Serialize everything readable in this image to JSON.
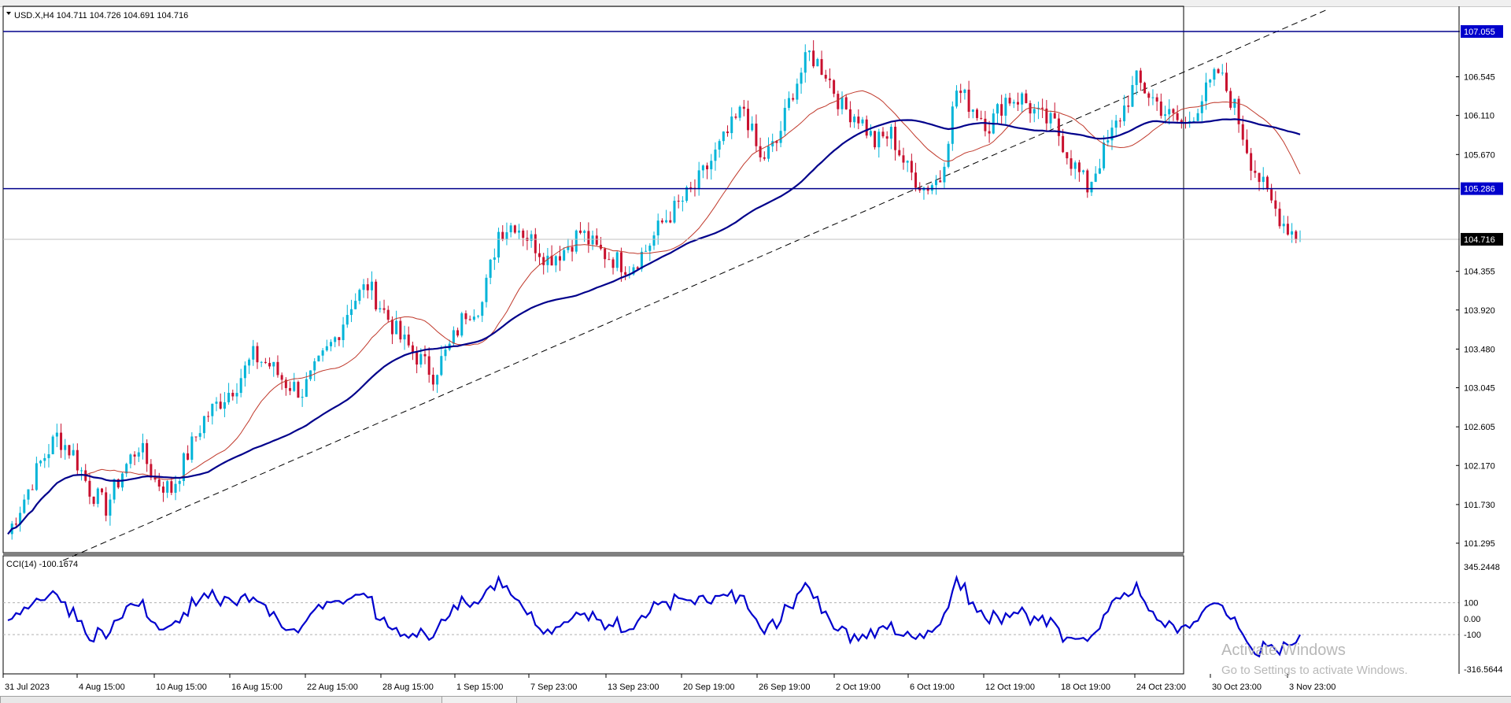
{
  "header": {
    "symbol_line": "USD.X,H4  104.711 104.726 104.691 104.716"
  },
  "price_scale": {
    "labels": [
      "106.545",
      "106.110",
      "105.670",
      "104.355",
      "103.920",
      "103.480",
      "103.045",
      "102.605",
      "102.170",
      "101.730",
      "101.295"
    ],
    "hline_top": "107.055",
    "hline_mid": "105.286",
    "current": "104.716"
  },
  "indicator": {
    "title": "CCI(14) -100.1674",
    "scale": [
      "345.2448",
      "100",
      "0.00",
      "-100",
      "-316.5644"
    ]
  },
  "time_axis": [
    "31 Jul 2023",
    "4 Aug 15:00",
    "10 Aug 15:00",
    "16 Aug 15:00",
    "22 Aug 15:00",
    "28 Aug 15:00",
    "1 Sep 15:00",
    "7 Sep 23:00",
    "13 Sep 23:00",
    "20 Sep 19:00",
    "26 Sep 19:00",
    "2 Oct 19:00",
    "6 Oct 19:00",
    "12 Oct 19:00",
    "18 Oct 19:00",
    "24 Oct 23:00",
    "30 Oct 23:00",
    "3 Nov 23:00"
  ],
  "watermark": {
    "line1": "Activate Windows",
    "line2": "Go to Settings to activate Windows."
  },
  "colors": {
    "bull": "#00b4d8",
    "bear": "#c8102e",
    "ma_fast": "#c0392b",
    "ma_slow": "#00008b",
    "cci": "#0000cd",
    "hline": "#00008b",
    "label_bg": "#0000cc"
  },
  "chart_data": {
    "type": "candlestick",
    "ohlc_approx_close": [
      101.4,
      101.8,
      102.2,
      102.5,
      102.3,
      101.9,
      101.7,
      102.1,
      102.4,
      102.0,
      101.9,
      102.3,
      102.7,
      102.9,
      103.1,
      103.4,
      103.3,
      103.1,
      103.0,
      103.3,
      103.6,
      104.0,
      104.2,
      103.9,
      103.6,
      103.4,
      103.2,
      103.5,
      103.9,
      104.0,
      104.8,
      104.9,
      104.7,
      104.5,
      104.6,
      104.8,
      104.6,
      104.5,
      104.4,
      104.6,
      104.9,
      105.1,
      105.3,
      105.6,
      105.9,
      106.2,
      105.6,
      105.8,
      106.4,
      106.8,
      106.6,
      106.2,
      106.1,
      105.8,
      105.9,
      105.5,
      105.3,
      105.4,
      106.4,
      106.2,
      106.0,
      106.3,
      106.3,
      106.1,
      106.0,
      105.6,
      105.3,
      105.7,
      106.1,
      106.5,
      106.3,
      106.1,
      106.0,
      106.3,
      106.6,
      106.2,
      105.6,
      105.2,
      104.9,
      104.72
    ],
    "current_price": 104.716,
    "levels": [
      107.055,
      105.286
    ],
    "cci_period": 14,
    "cci_last": -100.1674,
    "cci_range": [
      -316.5644,
      345.2448
    ]
  }
}
